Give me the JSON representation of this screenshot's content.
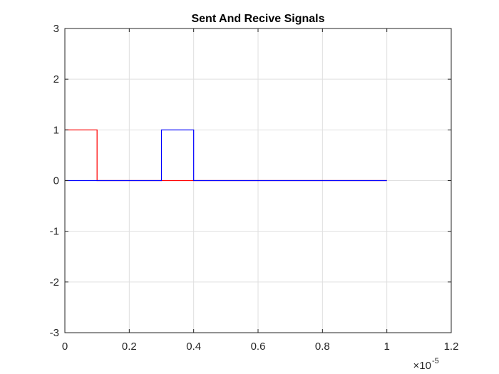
{
  "chart_data": {
    "type": "line",
    "title": "Sent And Recive Signals",
    "xlabel": "",
    "ylabel": "",
    "xlim": [
      0,
      1.2e-05
    ],
    "ylim": [
      -3,
      3
    ],
    "grid": true,
    "x_exponent_label": {
      "base": "×10",
      "power": "-5"
    },
    "x_ticks": [
      0,
      2e-06,
      4e-06,
      6e-06,
      8e-06,
      1e-05,
      1.2e-05
    ],
    "x_tick_labels": [
      "0",
      "0.2",
      "0.4",
      "0.6",
      "0.8",
      "1",
      "1.2"
    ],
    "y_ticks": [
      -3,
      -2,
      -1,
      0,
      1,
      2,
      3
    ],
    "y_tick_labels": [
      "-3",
      "-2",
      "-1",
      "0",
      "1",
      "2",
      "3"
    ],
    "series": [
      {
        "color": "#ff0000",
        "x": [
          0,
          1e-06,
          1e-06,
          3e-06,
          3e-06,
          4e-06,
          4e-06,
          1e-05
        ],
        "y": [
          1,
          1,
          0,
          0,
          0,
          0,
          0,
          0
        ]
      },
      {
        "color": "#0000ff",
        "x": [
          0,
          3e-06,
          3e-06,
          4e-06,
          4e-06,
          1e-05
        ],
        "y": [
          0,
          0,
          1,
          1,
          0,
          0
        ]
      }
    ]
  }
}
